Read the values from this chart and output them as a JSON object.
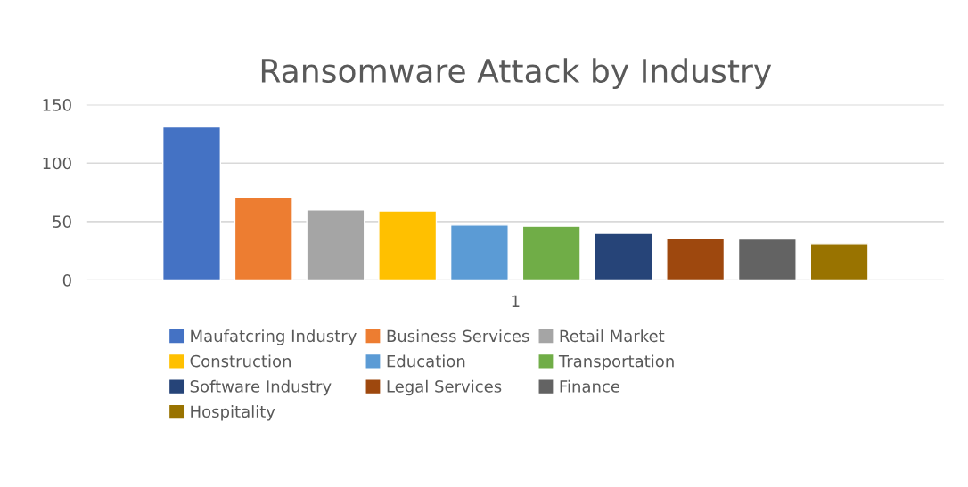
{
  "chart_data": {
    "type": "bar",
    "title": "Ransomware Attack by Industry",
    "categories": [
      "1"
    ],
    "series": [
      {
        "name": "Maufatcring Industry",
        "color": "#4472c4",
        "values": [
          131
        ]
      },
      {
        "name": "Business Services",
        "color": "#ed7d31",
        "values": [
          71
        ]
      },
      {
        "name": "Retail Market",
        "color": "#a5a5a5",
        "values": [
          60
        ]
      },
      {
        "name": "Construction",
        "color": "#ffc000",
        "values": [
          59
        ]
      },
      {
        "name": "Education",
        "color": "#5b9bd5",
        "values": [
          47
        ]
      },
      {
        "name": "Transportation",
        "color": "#70ad47",
        "values": [
          46
        ]
      },
      {
        "name": "Software Industry",
        "color": "#264478",
        "values": [
          40
        ]
      },
      {
        "name": "Legal Services",
        "color": "#9e480e",
        "values": [
          36
        ]
      },
      {
        "name": "Finance",
        "color": "#636363",
        "values": [
          35
        ]
      },
      {
        "name": "Hospitality",
        "color": "#997300",
        "values": [
          31
        ]
      }
    ],
    "ylim": [
      0,
      150
    ],
    "yticks": [
      0,
      50,
      100,
      150
    ],
    "grid": "y",
    "legend": "bottom"
  }
}
